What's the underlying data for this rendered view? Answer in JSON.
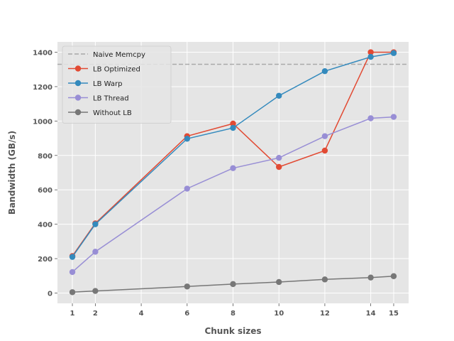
{
  "chart_data": {
    "type": "line",
    "title": "",
    "xlabel": "Chunk sizes",
    "ylabel": "Bandwidth (GB/s)",
    "xlim": [
      0.35,
      15.65
    ],
    "ylim": [
      -60,
      1460
    ],
    "xticks": [
      1,
      2,
      4,
      6,
      8,
      10,
      12,
      14,
      15
    ],
    "yticks": [
      0,
      200,
      400,
      600,
      800,
      1000,
      1200,
      1400
    ],
    "grid": true,
    "legend_position": "top-left",
    "reference_lines": [
      {
        "name": "Naive Memcpy",
        "y": 1330,
        "color": "#aaaaaa",
        "style": "dashed"
      }
    ],
    "series": [
      {
        "name": "LB Optimized",
        "color": "#E24A33",
        "x": [
          1,
          2,
          6,
          8,
          10,
          12,
          14,
          15
        ],
        "values": [
          215,
          405,
          912,
          985,
          733,
          828,
          1400,
          1400
        ]
      },
      {
        "name": "LB Warp",
        "color": "#348ABD",
        "x": [
          1,
          2,
          6,
          8,
          10,
          12,
          14,
          15
        ],
        "values": [
          210,
          400,
          897,
          960,
          1147,
          1290,
          1373,
          1395
        ]
      },
      {
        "name": "LB Thread",
        "color": "#988ED5",
        "x": [
          1,
          2,
          6,
          8,
          10,
          12,
          14,
          15
        ],
        "values": [
          122,
          240,
          607,
          726,
          786,
          912,
          1016,
          1024
        ]
      },
      {
        "name": "Without LB",
        "color": "#777777",
        "x": [
          1,
          2,
          6,
          8,
          10,
          12,
          14,
          15
        ],
        "values": [
          5,
          12,
          38,
          52,
          64,
          79,
          90,
          98
        ]
      }
    ]
  }
}
